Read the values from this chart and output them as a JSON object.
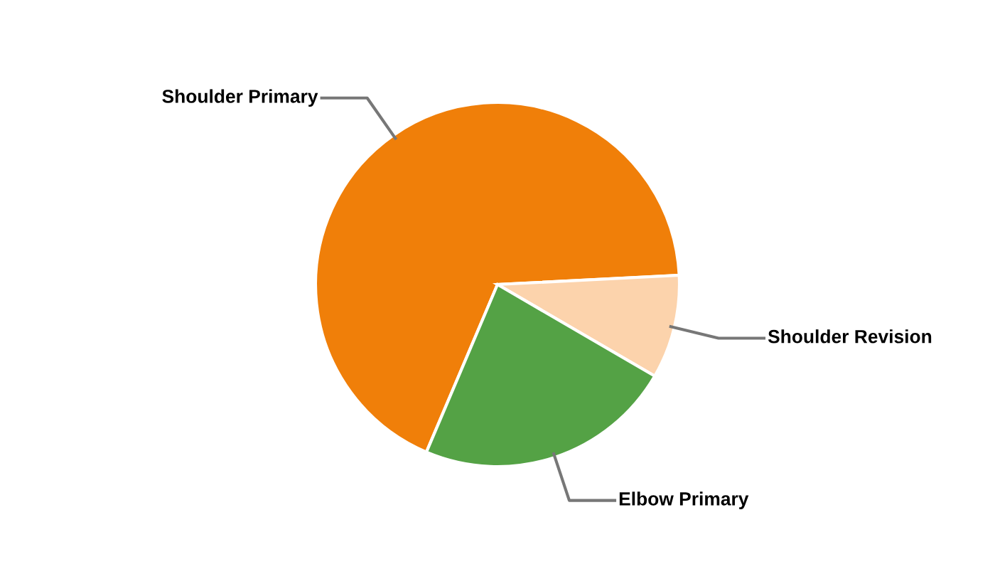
{
  "chart_data": {
    "type": "pie",
    "categories": [
      "Shoulder Primary",
      "Shoulder Revision",
      "Elbow Primary"
    ],
    "values": [
      67.8,
      9.2,
      23.0
    ],
    "colors": [
      "#f07f09",
      "#fcd3ac",
      "#54a245"
    ],
    "legend": false
  }
}
